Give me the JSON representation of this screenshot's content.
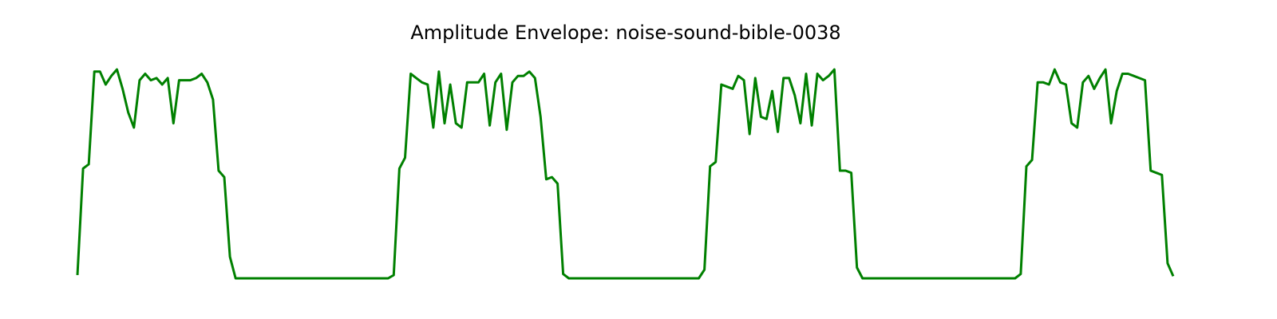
{
  "chart_data": {
    "type": "line",
    "title": "Amplitude Envelope: noise-sound-bible-0038",
    "color": "#008000",
    "ylim": [
      0,
      1
    ],
    "values": [
      0.015,
      0.51,
      0.53,
      0.96,
      0.96,
      0.9,
      0.94,
      0.97,
      0.88,
      0.77,
      0.7,
      0.92,
      0.95,
      0.92,
      0.93,
      0.9,
      0.93,
      0.72,
      0.92,
      0.92,
      0.92,
      0.93,
      0.95,
      0.91,
      0.83,
      0.5,
      0.47,
      0.1,
      0,
      0,
      0,
      0,
      0,
      0,
      0,
      0,
      0,
      0,
      0,
      0,
      0,
      0,
      0,
      0,
      0,
      0,
      0,
      0,
      0,
      0,
      0,
      0,
      0,
      0,
      0,
      0,
      0.015,
      0.51,
      0.56,
      0.95,
      0.93,
      0.91,
      0.9,
      0.7,
      0.96,
      0.72,
      0.9,
      0.72,
      0.7,
      0.91,
      0.91,
      0.91,
      0.95,
      0.71,
      0.91,
      0.95,
      0.69,
      0.91,
      0.94,
      0.94,
      0.96,
      0.93,
      0.75,
      0.46,
      0.47,
      0.44,
      0.02,
      0,
      0,
      0,
      0,
      0,
      0,
      0,
      0,
      0,
      0,
      0,
      0,
      0,
      0,
      0,
      0,
      0,
      0,
      0,
      0,
      0,
      0,
      0,
      0,
      0.04,
      0.52,
      0.54,
      0.9,
      0.89,
      0.88,
      0.94,
      0.92,
      0.67,
      0.93,
      0.75,
      0.74,
      0.87,
      0.68,
      0.93,
      0.93,
      0.85,
      0.72,
      0.95,
      0.71,
      0.95,
      0.92,
      0.94,
      0.97,
      0.5,
      0.5,
      0.49,
      0.05,
      0,
      0,
      0,
      0,
      0,
      0,
      0,
      0,
      0,
      0,
      0,
      0,
      0,
      0,
      0,
      0,
      0,
      0,
      0,
      0,
      0,
      0,
      0,
      0,
      0,
      0,
      0,
      0,
      0.02,
      0.52,
      0.55,
      0.91,
      0.91,
      0.9,
      0.97,
      0.91,
      0.9,
      0.72,
      0.7,
      0.91,
      0.94,
      0.88,
      0.93,
      0.97,
      0.72,
      0.87,
      0.95,
      0.95,
      0.94,
      0.93,
      0.92,
      0.5,
      0.49,
      0.48,
      0.07,
      0.01
    ]
  }
}
